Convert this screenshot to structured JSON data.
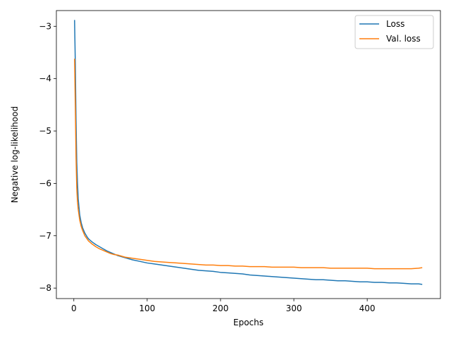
{
  "chart_data": {
    "type": "line",
    "title": "",
    "xlabel": "Epochs",
    "ylabel": "Negative log-likelihood",
    "xlim": [
      -23.8,
      499.8
    ],
    "ylim": [
      -8.2,
      -2.7
    ],
    "x_ticks": [
      0,
      100,
      200,
      300,
      400
    ],
    "x_tick_labels": [
      "0",
      "100",
      "200",
      "300",
      "400"
    ],
    "y_ticks": [
      -3,
      -4,
      -5,
      -6,
      -7,
      -8
    ],
    "y_tick_labels": [
      "−3",
      "−4",
      "−5",
      "−6",
      "−7",
      "−8"
    ],
    "grid": false,
    "legend_position": "top-right",
    "series": [
      {
        "name": "Loss",
        "color": "#1f77b4",
        "x": [
          1,
          2,
          3,
          4,
          5,
          6,
          8,
          10,
          12,
          15,
          18,
          20,
          25,
          30,
          35,
          40,
          45,
          50,
          55,
          60,
          70,
          80,
          90,
          100,
          110,
          120,
          130,
          140,
          150,
          160,
          170,
          180,
          190,
          200,
          210,
          220,
          230,
          240,
          250,
          260,
          270,
          280,
          290,
          300,
          310,
          320,
          330,
          340,
          350,
          360,
          370,
          380,
          390,
          400,
          410,
          420,
          430,
          440,
          450,
          460,
          470,
          475
        ],
        "values": [
          -2.88,
          -3.7,
          -4.8,
          -5.6,
          -6.0,
          -6.3,
          -6.6,
          -6.75,
          -6.85,
          -6.95,
          -7.02,
          -7.06,
          -7.12,
          -7.17,
          -7.21,
          -7.25,
          -7.29,
          -7.32,
          -7.35,
          -7.38,
          -7.42,
          -7.46,
          -7.49,
          -7.52,
          -7.54,
          -7.56,
          -7.58,
          -7.6,
          -7.62,
          -7.64,
          -7.66,
          -7.67,
          -7.68,
          -7.7,
          -7.71,
          -7.72,
          -7.73,
          -7.75,
          -7.76,
          -7.77,
          -7.78,
          -7.79,
          -7.8,
          -7.81,
          -7.82,
          -7.83,
          -7.84,
          -7.84,
          -7.85,
          -7.86,
          -7.86,
          -7.87,
          -7.88,
          -7.88,
          -7.89,
          -7.89,
          -7.9,
          -7.9,
          -7.91,
          -7.92,
          -7.92,
          -7.93
        ]
      },
      {
        "name": "Val. loss",
        "color": "#ff7f0e",
        "x": [
          1,
          2,
          3,
          4,
          5,
          6,
          8,
          10,
          12,
          15,
          18,
          20,
          25,
          30,
          35,
          40,
          45,
          50,
          55,
          60,
          70,
          80,
          90,
          100,
          110,
          120,
          130,
          140,
          150,
          160,
          170,
          180,
          190,
          200,
          210,
          220,
          230,
          240,
          250,
          260,
          270,
          280,
          290,
          300,
          310,
          320,
          330,
          340,
          350,
          360,
          370,
          380,
          390,
          400,
          410,
          420,
          430,
          440,
          450,
          460,
          470,
          475
        ],
        "values": [
          -3.62,
          -4.5,
          -5.5,
          -6.1,
          -6.35,
          -6.5,
          -6.7,
          -6.82,
          -6.9,
          -7.0,
          -7.06,
          -7.1,
          -7.16,
          -7.21,
          -7.25,
          -7.28,
          -7.31,
          -7.34,
          -7.36,
          -7.37,
          -7.41,
          -7.43,
          -7.45,
          -7.47,
          -7.49,
          -7.5,
          -7.51,
          -7.52,
          -7.53,
          -7.54,
          -7.55,
          -7.56,
          -7.56,
          -7.57,
          -7.57,
          -7.58,
          -7.58,
          -7.59,
          -7.59,
          -7.59,
          -7.6,
          -7.6,
          -7.6,
          -7.6,
          -7.61,
          -7.61,
          -7.61,
          -7.61,
          -7.62,
          -7.62,
          -7.62,
          -7.62,
          -7.62,
          -7.62,
          -7.63,
          -7.63,
          -7.63,
          -7.63,
          -7.63,
          -7.63,
          -7.62,
          -7.61
        ]
      }
    ]
  }
}
